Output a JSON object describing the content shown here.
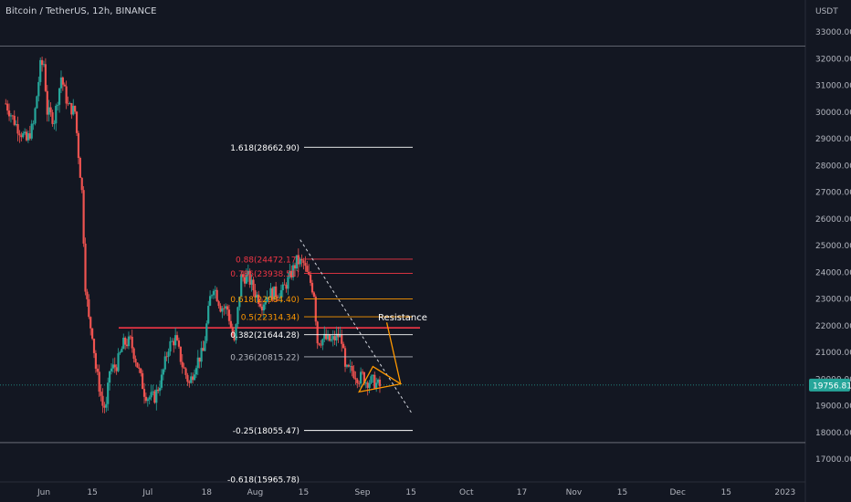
{
  "header": {
    "symbol_title": "Bitcoin / TetherUS, 12h, BINANCE",
    "currency": "USDT"
  },
  "chart_data": {
    "type": "candlestick",
    "symbol": "Bitcoin / TetherUS",
    "interval": "12h",
    "exchange": "BINANCE",
    "currency": "USDT",
    "y_range": [
      16500,
      33800
    ],
    "y_ticks": [
      33000,
      32000,
      31000,
      30000,
      29000,
      28000,
      27000,
      26000,
      25000,
      24000,
      23000,
      22000,
      21000,
      20000,
      19000,
      18000,
      17000
    ],
    "y_tick_labels": [
      "33000.00",
      "32000.00",
      "31000.00",
      "30000.00",
      "29000.00",
      "28000.00",
      "27000.00",
      "26000.00",
      "25000.00",
      "24000.00",
      "23000.00",
      "22000.00",
      "21000.00",
      "20000.00",
      "19000.00",
      "18000.00",
      "17000.00"
    ],
    "x_tick_labels": [
      {
        "label": "Jun",
        "date": "2022-06-01"
      },
      {
        "label": "15",
        "date": "2022-06-15"
      },
      {
        "label": "Jul",
        "date": "2022-07-01"
      },
      {
        "label": "18",
        "date": "2022-07-18"
      },
      {
        "label": "Aug",
        "date": "2022-08-01"
      },
      {
        "label": "15",
        "date": "2022-08-15"
      },
      {
        "label": "Sep",
        "date": "2022-09-01"
      },
      {
        "label": "15",
        "date": "2022-09-15"
      },
      {
        "label": "Oct",
        "date": "2022-10-01"
      },
      {
        "label": "17",
        "date": "2022-10-17"
      },
      {
        "label": "Nov",
        "date": "2022-11-01"
      },
      {
        "label": "15",
        "date": "2022-11-15"
      },
      {
        "label": "Dec",
        "date": "2022-12-01"
      },
      {
        "label": "15",
        "date": "2022-12-15"
      },
      {
        "label": "2023",
        "date": "2023-01-01"
      }
    ],
    "price_path": [
      [
        "2022-05-21",
        30300
      ],
      [
        "2022-05-24",
        29500
      ],
      [
        "2022-05-27",
        28900
      ],
      [
        "2022-05-29",
        29500
      ],
      [
        "2022-05-31",
        31700
      ],
      [
        "2022-06-01",
        31800
      ],
      [
        "2022-06-02",
        30000
      ],
      [
        "2022-06-04",
        29700
      ],
      [
        "2022-06-06",
        31300
      ],
      [
        "2022-06-08",
        30200
      ],
      [
        "2022-06-10",
        30000
      ],
      [
        "2022-06-11",
        28400
      ],
      [
        "2022-06-12",
        27000
      ],
      [
        "2022-06-13",
        23500
      ],
      [
        "2022-06-14",
        22200
      ],
      [
        "2022-06-15",
        21700
      ],
      [
        "2022-06-16",
        20400
      ],
      [
        "2022-06-18",
        19000
      ],
      [
        "2022-06-19",
        18900
      ],
      [
        "2022-06-20",
        20300
      ],
      [
        "2022-06-22",
        20500
      ],
      [
        "2022-06-24",
        21300
      ],
      [
        "2022-06-26",
        21400
      ],
      [
        "2022-06-28",
        20500
      ],
      [
        "2022-06-30",
        19500
      ],
      [
        "2022-07-01",
        19300
      ],
      [
        "2022-07-03",
        19300
      ],
      [
        "2022-07-05",
        20000
      ],
      [
        "2022-07-07",
        21200
      ],
      [
        "2022-07-09",
        21500
      ],
      [
        "2022-07-11",
        20500
      ],
      [
        "2022-07-13",
        19800
      ],
      [
        "2022-07-15",
        20600
      ],
      [
        "2022-07-17",
        21000
      ],
      [
        "2022-07-19",
        23000
      ],
      [
        "2022-07-20",
        23500
      ],
      [
        "2022-07-22",
        22700
      ],
      [
        "2022-07-24",
        22600
      ],
      [
        "2022-07-26",
        21300
      ],
      [
        "2022-07-28",
        23800
      ],
      [
        "2022-07-30",
        23800
      ],
      [
        "2022-08-01",
        23200
      ],
      [
        "2022-08-03",
        22800
      ],
      [
        "2022-08-05",
        23200
      ],
      [
        "2022-08-07",
        23200
      ],
      [
        "2022-08-09",
        23300
      ],
      [
        "2022-08-11",
        23800
      ],
      [
        "2022-08-13",
        24400
      ],
      [
        "2022-08-15",
        24300
      ],
      [
        "2022-08-16",
        23900
      ],
      [
        "2022-08-17",
        23600
      ],
      [
        "2022-08-18",
        23200
      ],
      [
        "2022-08-19",
        21400
      ],
      [
        "2022-08-21",
        21500
      ],
      [
        "2022-08-23",
        21400
      ],
      [
        "2022-08-25",
        21600
      ],
      [
        "2022-08-26",
        21500
      ],
      [
        "2022-08-27",
        20300
      ],
      [
        "2022-08-29",
        20300
      ],
      [
        "2022-08-31",
        20000
      ],
      [
        "2022-09-01",
        20100
      ],
      [
        "2022-09-02",
        19900
      ],
      [
        "2022-09-04",
        19900
      ],
      [
        "2022-09-06",
        19700
      ]
    ],
    "fibonacci_levels": [
      {
        "label": "1.618(28662.90)",
        "ratio": "1.618",
        "price": 28662.9,
        "color": "#ffffff"
      },
      {
        "label": "0.88(24472.17)",
        "ratio": "0.88",
        "price": 24472.17,
        "color": "#f23645"
      },
      {
        "label": "0.786(23938.51)",
        "ratio": "0.786",
        "price": 23938.51,
        "color": "#f23645"
      },
      {
        "label": "0.618(22984.40)",
        "ratio": "0.618",
        "price": 22984.4,
        "color": "#ff9800"
      },
      {
        "label": "0.5(22314.34)",
        "ratio": "0.5",
        "price": 22314.34,
        "color": "#ff9800"
      },
      {
        "label": "0.382(21644.28)",
        "ratio": "0.382",
        "price": 21644.28,
        "color": "#ffffff"
      },
      {
        "label": "0.236(20815.22)",
        "ratio": "0.236",
        "price": 20815.22,
        "color": "#b2b5be"
      },
      {
        "label": "-0.25(18055.47)",
        "ratio": "-0.25",
        "price": 18055.47,
        "color": "#ffffff"
      },
      {
        "label": "-0.618(15965.78)",
        "ratio": "-0.618",
        "price": 15965.78,
        "color": "#ffffff"
      }
    ],
    "annotations": {
      "resistance_label": "Resistance",
      "resistance_price": 21900,
      "current_price_label": "19756.81",
      "current_price": 19756.81,
      "upper_hline_price": 32450,
      "lower_hline_price": 17600,
      "downtrend_line": [
        [
          "2022-08-14",
          25200
        ],
        [
          "2022-09-12",
          19350
        ]
      ],
      "triangle": [
        [
          "2022-08-31",
          19500
        ],
        [
          "2022-09-04",
          20450
        ],
        [
          "2022-09-12",
          19800
        ]
      ],
      "projection_path": [
        [
          "2022-09-12",
          19800
        ],
        [
          "2022-09-08",
          22100
        ]
      ]
    },
    "colors": {
      "up": "#26a69a",
      "down": "#ef5350",
      "background": "#131722",
      "resistance": "#f23645",
      "pattern": "#ff9800",
      "current_price_bg": "#26a69a"
    },
    "grid": false,
    "legend": "none"
  }
}
